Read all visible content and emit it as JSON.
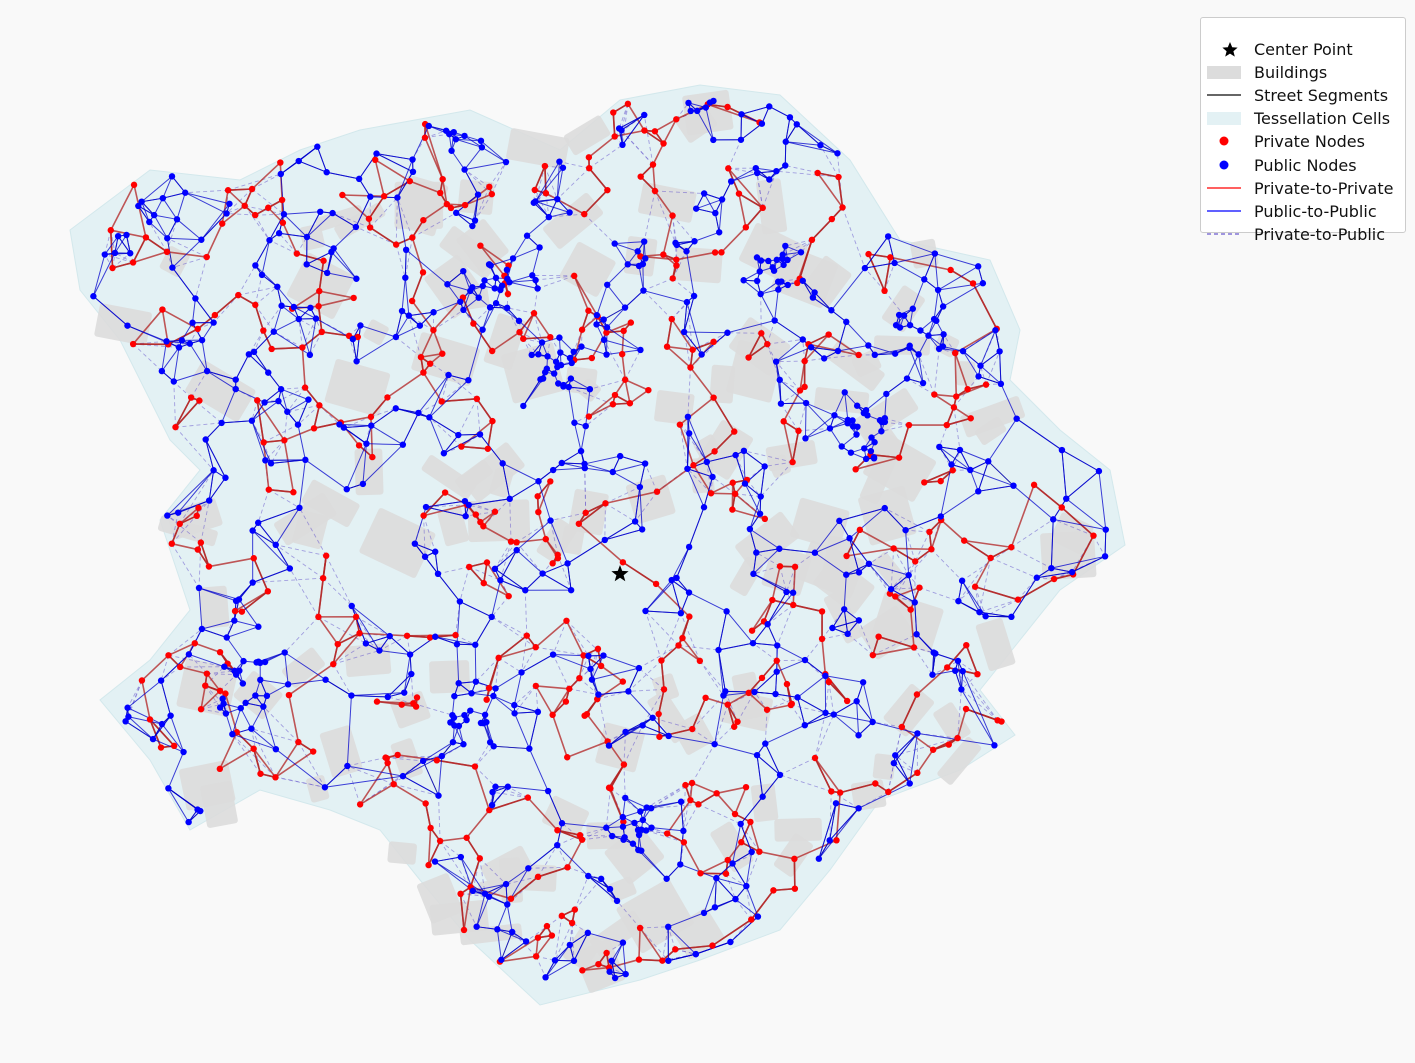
{
  "legend": {
    "items": [
      {
        "key": "center",
        "label": "Center Point"
      },
      {
        "key": "buildings",
        "label": "Buildings"
      },
      {
        "key": "streets",
        "label": "Street Segments"
      },
      {
        "key": "tessellation",
        "label": "Tessellation Cells"
      },
      {
        "key": "private_nodes",
        "label": "Private Nodes"
      },
      {
        "key": "public_nodes",
        "label": "Public Nodes"
      },
      {
        "key": "priv_priv",
        "label": "Private-to-Private"
      },
      {
        "key": "pub_pub",
        "label": "Public-to-Public"
      },
      {
        "key": "priv_pub",
        "label": "Private-to-Public"
      }
    ]
  },
  "colors": {
    "background": "#f9f9f9",
    "building": "#dcdcdc",
    "tessellation": "#e3f1f4",
    "street": "#333333",
    "private_node": "#ff0000",
    "public_node": "#0000ff",
    "private_edge": "#b22222",
    "public_edge": "#0000cc",
    "private_public_edge": "#6a5acd",
    "center": "#000000"
  },
  "icons": {
    "center": "star-icon",
    "private_nodes": "red-dot-icon",
    "public_nodes": "blue-dot-icon"
  }
}
